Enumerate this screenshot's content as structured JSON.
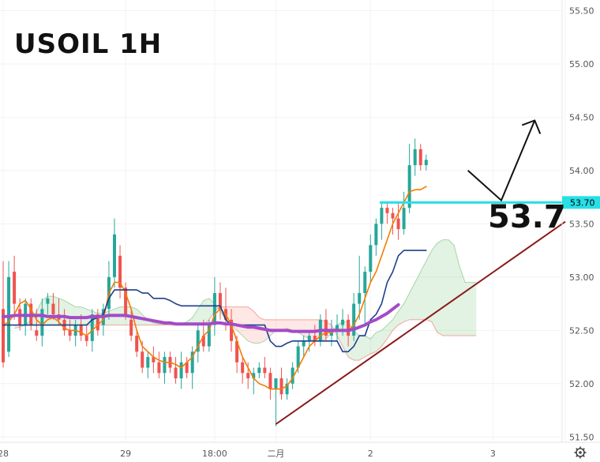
{
  "title": "USOIL 1H",
  "level_label": "53.7",
  "settings_icon": "gear-icon",
  "chart_data": {
    "type": "candlestick",
    "symbol": "USOIL",
    "timeframe": "1H",
    "ylim": [
      51.45,
      55.6
    ],
    "y_ticks": [
      55.5,
      55.0,
      54.5,
      54.0,
      53.5,
      53.0,
      52.5,
      52.0,
      51.5
    ],
    "y_tick_labels": [
      "55.50",
      "55.00",
      "54.50",
      "54.00",
      "53.50",
      "53.00",
      "52.50",
      "52.00",
      "51.50"
    ],
    "x_ticks": [
      {
        "label": "28",
        "bar": 0
      },
      {
        "label": "29",
        "bar": 22
      },
      {
        "label": "18:00",
        "bar": 38
      },
      {
        "label": "二月",
        "bar": 49
      },
      {
        "label": "2",
        "bar": 66
      },
      {
        "label": "3",
        "bar": 88
      },
      {
        "label": "",
        "bar": 101
      }
    ],
    "candles": [
      [
        52.7,
        53.15,
        52.15,
        52.2
      ],
      [
        52.3,
        53.15,
        52.25,
        53.0
      ],
      [
        53.05,
        53.2,
        52.6,
        52.75
      ],
      [
        52.7,
        52.8,
        52.5,
        52.55
      ],
      [
        52.55,
        52.8,
        52.45,
        52.75
      ],
      [
        52.75,
        52.8,
        52.5,
        52.55
      ],
      [
        52.5,
        52.7,
        52.4,
        52.45
      ],
      [
        52.45,
        52.8,
        52.35,
        52.7
      ],
      [
        52.75,
        52.85,
        52.65,
        52.8
      ],
      [
        52.75,
        52.85,
        52.6,
        52.65
      ],
      [
        52.65,
        52.8,
        52.55,
        52.6
      ],
      [
        52.6,
        52.7,
        52.45,
        52.5
      ],
      [
        52.5,
        52.6,
        52.4,
        52.45
      ],
      [
        52.45,
        52.6,
        52.35,
        52.55
      ],
      [
        52.55,
        52.65,
        52.4,
        52.45
      ],
      [
        52.45,
        52.55,
        52.35,
        52.4
      ],
      [
        52.4,
        52.7,
        52.3,
        52.65
      ],
      [
        52.65,
        52.7,
        52.45,
        52.5
      ],
      [
        52.55,
        52.75,
        52.45,
        52.7
      ],
      [
        52.7,
        53.15,
        52.6,
        53.0
      ],
      [
        53.0,
        53.55,
        52.9,
        53.4
      ],
      [
        53.2,
        53.3,
        52.8,
        52.9
      ],
      [
        52.9,
        52.95,
        52.6,
        52.65
      ],
      [
        52.6,
        52.7,
        52.4,
        52.45
      ],
      [
        52.45,
        52.5,
        52.25,
        52.3
      ],
      [
        52.3,
        52.4,
        52.1,
        52.15
      ],
      [
        52.15,
        52.3,
        52.05,
        52.25
      ],
      [
        52.25,
        52.35,
        52.1,
        52.2
      ],
      [
        52.2,
        52.3,
        52.05,
        52.1
      ],
      [
        52.1,
        52.3,
        52.0,
        52.25
      ],
      [
        52.25,
        52.3,
        52.1,
        52.15
      ],
      [
        52.15,
        52.25,
        52.0,
        52.05
      ],
      [
        52.05,
        52.3,
        51.95,
        52.2
      ],
      [
        52.2,
        52.25,
        52.05,
        52.1
      ],
      [
        52.1,
        52.35,
        51.95,
        52.3
      ],
      [
        52.3,
        52.55,
        52.2,
        52.5
      ],
      [
        52.45,
        52.6,
        52.3,
        52.35
      ],
      [
        52.35,
        52.6,
        52.3,
        52.55
      ],
      [
        52.55,
        53.0,
        52.45,
        52.85
      ],
      [
        52.85,
        52.95,
        52.6,
        52.7
      ],
      [
        52.7,
        52.9,
        52.5,
        52.6
      ],
      [
        52.6,
        52.7,
        52.3,
        52.4
      ],
      [
        52.4,
        52.45,
        52.1,
        52.2
      ],
      [
        52.2,
        52.25,
        52.0,
        52.1
      ],
      [
        52.1,
        52.2,
        51.95,
        52.05
      ],
      [
        52.05,
        52.15,
        51.9,
        52.1
      ],
      [
        52.1,
        52.2,
        52.05,
        52.15
      ],
      [
        52.15,
        52.25,
        52.05,
        52.1
      ],
      [
        52.1,
        52.15,
        51.85,
        51.95
      ],
      [
        51.95,
        52.05,
        51.6,
        52.05
      ],
      [
        52.05,
        52.15,
        51.85,
        51.9
      ],
      [
        51.9,
        52.05,
        51.85,
        52.0
      ],
      [
        52.0,
        52.2,
        51.95,
        52.15
      ],
      [
        52.15,
        52.4,
        52.1,
        52.35
      ],
      [
        52.35,
        52.45,
        52.25,
        52.4
      ],
      [
        52.4,
        52.5,
        52.3,
        52.45
      ],
      [
        52.45,
        52.55,
        52.35,
        52.4
      ],
      [
        52.4,
        52.65,
        52.35,
        52.6
      ],
      [
        52.6,
        52.7,
        52.4,
        52.45
      ],
      [
        52.45,
        52.6,
        52.35,
        52.5
      ],
      [
        52.5,
        52.65,
        52.4,
        52.55
      ],
      [
        52.55,
        52.7,
        52.45,
        52.6
      ],
      [
        52.6,
        52.65,
        52.35,
        52.45
      ],
      [
        52.45,
        52.85,
        52.4,
        52.75
      ],
      [
        52.75,
        53.2,
        52.6,
        52.85
      ],
      [
        52.85,
        53.1,
        52.55,
        53.05
      ],
      [
        53.05,
        53.4,
        52.95,
        53.3
      ],
      [
        53.3,
        53.55,
        53.2,
        53.5
      ],
      [
        53.5,
        53.7,
        53.35,
        53.65
      ],
      [
        53.65,
        53.7,
        53.5,
        53.6
      ],
      [
        53.6,
        53.65,
        53.4,
        53.55
      ],
      [
        53.55,
        53.7,
        53.35,
        53.45
      ],
      [
        53.45,
        53.8,
        53.4,
        53.65
      ],
      [
        53.65,
        54.25,
        53.6,
        54.05
      ],
      [
        54.05,
        54.3,
        53.95,
        54.2
      ],
      [
        54.2,
        54.25,
        54.0,
        54.05
      ],
      [
        54.05,
        54.15,
        54.0,
        54.1
      ]
    ],
    "up_color": "#26a69a",
    "down_color": "#ef5350",
    "series": [
      {
        "name": "",
        "color": "#f57c00",
        "values": [
          52.55,
          52.58,
          52.65,
          52.75,
          52.78,
          52.7,
          52.6,
          52.55,
          52.6,
          52.62,
          52.58,
          52.52,
          52.5,
          52.5,
          52.48,
          52.45,
          52.5,
          52.55,
          52.6,
          52.85,
          52.95,
          52.95,
          52.85,
          52.7,
          52.5,
          52.35,
          52.3,
          52.25,
          52.22,
          52.2,
          52.2,
          52.18,
          52.15,
          52.2,
          52.25,
          52.35,
          52.45,
          52.5,
          52.65,
          52.7,
          52.65,
          52.55,
          52.4,
          52.25,
          52.15,
          52.05,
          52.0,
          51.98,
          51.95,
          51.95,
          51.95,
          51.98,
          52.05,
          52.15,
          52.25,
          52.35,
          52.4,
          52.45,
          52.48,
          52.48,
          52.5,
          52.5,
          52.5,
          52.55,
          52.65,
          52.8,
          52.95,
          53.05,
          53.2,
          53.35,
          53.5,
          53.6,
          53.7,
          53.8,
          53.82,
          53.82,
          53.85
        ]
      },
      {
        "name": "",
        "color": "#1e3f8b",
        "values": [
          52.55,
          52.55,
          52.55,
          52.55,
          52.55,
          52.55,
          52.55,
          52.55,
          52.55,
          52.55,
          52.55,
          52.55,
          52.55,
          52.55,
          52.55,
          52.55,
          52.6,
          52.62,
          52.65,
          52.8,
          52.88,
          52.88,
          52.88,
          52.88,
          52.88,
          52.85,
          52.85,
          52.8,
          52.8,
          52.8,
          52.78,
          52.75,
          52.73,
          52.73,
          52.73,
          52.73,
          52.73,
          52.73,
          52.73,
          52.73,
          52.6,
          52.55,
          52.55,
          52.55,
          52.55,
          52.55,
          52.55,
          52.55,
          52.4,
          52.35,
          52.35,
          52.38,
          52.4,
          52.4,
          52.4,
          52.4,
          52.4,
          52.4,
          52.4,
          52.4,
          52.4,
          52.3,
          52.3,
          52.35,
          52.45,
          52.45,
          52.6,
          52.65,
          52.75,
          52.95,
          53.05,
          53.2,
          53.25,
          53.25,
          53.25,
          53.25,
          53.25
        ]
      },
      {
        "name": "",
        "color": "#a44ac9",
        "values": [
          52.63,
          52.63,
          52.64,
          52.64,
          52.64,
          52.64,
          52.64,
          52.64,
          52.63,
          52.63,
          52.63,
          52.63,
          52.62,
          52.62,
          52.62,
          52.62,
          52.63,
          52.63,
          52.63,
          52.64,
          52.64,
          52.64,
          52.64,
          52.63,
          52.62,
          52.61,
          52.6,
          52.59,
          52.58,
          52.57,
          52.57,
          52.56,
          52.56,
          52.56,
          52.56,
          52.56,
          52.56,
          52.56,
          52.57,
          52.57,
          52.56,
          52.56,
          52.55,
          52.54,
          52.53,
          52.53,
          52.52,
          52.51,
          52.5,
          52.5,
          52.5,
          52.5,
          52.49,
          52.49,
          52.49,
          52.49,
          52.49,
          52.5,
          52.5,
          52.5,
          52.5,
          52.5,
          52.5,
          52.51,
          52.53,
          52.55,
          52.58,
          52.6,
          52.63,
          52.66,
          52.7,
          52.74
        ]
      }
    ],
    "cloud": {
      "start_bar": 2,
      "a": [
        52.52,
        52.53,
        52.55,
        52.6,
        52.68,
        52.78,
        52.82,
        52.82,
        52.8,
        52.78,
        52.75,
        52.72,
        52.72,
        52.7,
        52.68,
        52.66,
        52.66,
        52.68,
        52.7,
        52.72,
        52.72,
        52.72,
        52.7,
        52.65,
        52.6,
        52.57,
        52.56,
        52.56,
        52.56,
        52.56,
        52.56,
        52.58,
        52.62,
        52.7,
        52.78,
        52.8,
        52.75,
        52.68,
        52.6,
        52.55,
        52.5,
        52.45,
        52.4,
        52.38,
        52.38,
        52.4,
        52.45,
        52.5,
        52.5,
        52.52,
        52.5,
        52.48,
        52.45,
        52.42,
        52.4,
        52.4,
        52.42,
        52.48,
        52.55,
        52.58,
        52.58,
        52.5,
        52.45,
        52.45,
        52.42,
        52.48,
        52.5,
        52.55,
        52.6,
        52.68,
        52.75,
        52.85,
        52.95,
        53.05,
        53.15,
        53.25,
        53.32,
        53.35,
        53.35,
        53.3,
        53.1,
        52.95,
        52.95,
        52.95
      ],
      "b": [
        52.55,
        52.55,
        52.55,
        52.55,
        52.55,
        52.55,
        52.55,
        52.55,
        52.55,
        52.55,
        52.55,
        52.55,
        52.55,
        52.55,
        52.55,
        52.55,
        52.55,
        52.55,
        52.55,
        52.55,
        52.55,
        52.55,
        52.55,
        52.55,
        52.55,
        52.55,
        52.55,
        52.55,
        52.55,
        52.55,
        52.55,
        52.55,
        52.55,
        52.55,
        52.55,
        52.6,
        52.68,
        52.72,
        52.72,
        52.72,
        52.72,
        52.72,
        52.72,
        52.68,
        52.62,
        52.6,
        52.6,
        52.6,
        52.6,
        52.6,
        52.6,
        52.6,
        52.6,
        52.6,
        52.6,
        52.6,
        52.58,
        52.55,
        52.45,
        52.35,
        52.25,
        52.22,
        52.22,
        52.25,
        52.28,
        52.3,
        52.35,
        52.42,
        52.5,
        52.55,
        52.58,
        52.6,
        52.6,
        52.6,
        52.6,
        52.58,
        52.48,
        52.45,
        52.45,
        52.45,
        52.45,
        52.45,
        52.45,
        52.45
      ]
    },
    "horizontal_level": {
      "value": 53.7,
      "label": "53.70",
      "color": "#26e0e6"
    },
    "trend_line": {
      "from": {
        "bar": 49,
        "price": 51.62
      },
      "to": {
        "bar": 101,
        "price": 53.52
      },
      "color": "#8b1a1a"
    },
    "projection_path": [
      {
        "bar": 83.5,
        "price": 54.0
      },
      {
        "bar": 89.5,
        "price": 53.72
      },
      {
        "bar": 95.5,
        "price": 54.47
      }
    ]
  }
}
